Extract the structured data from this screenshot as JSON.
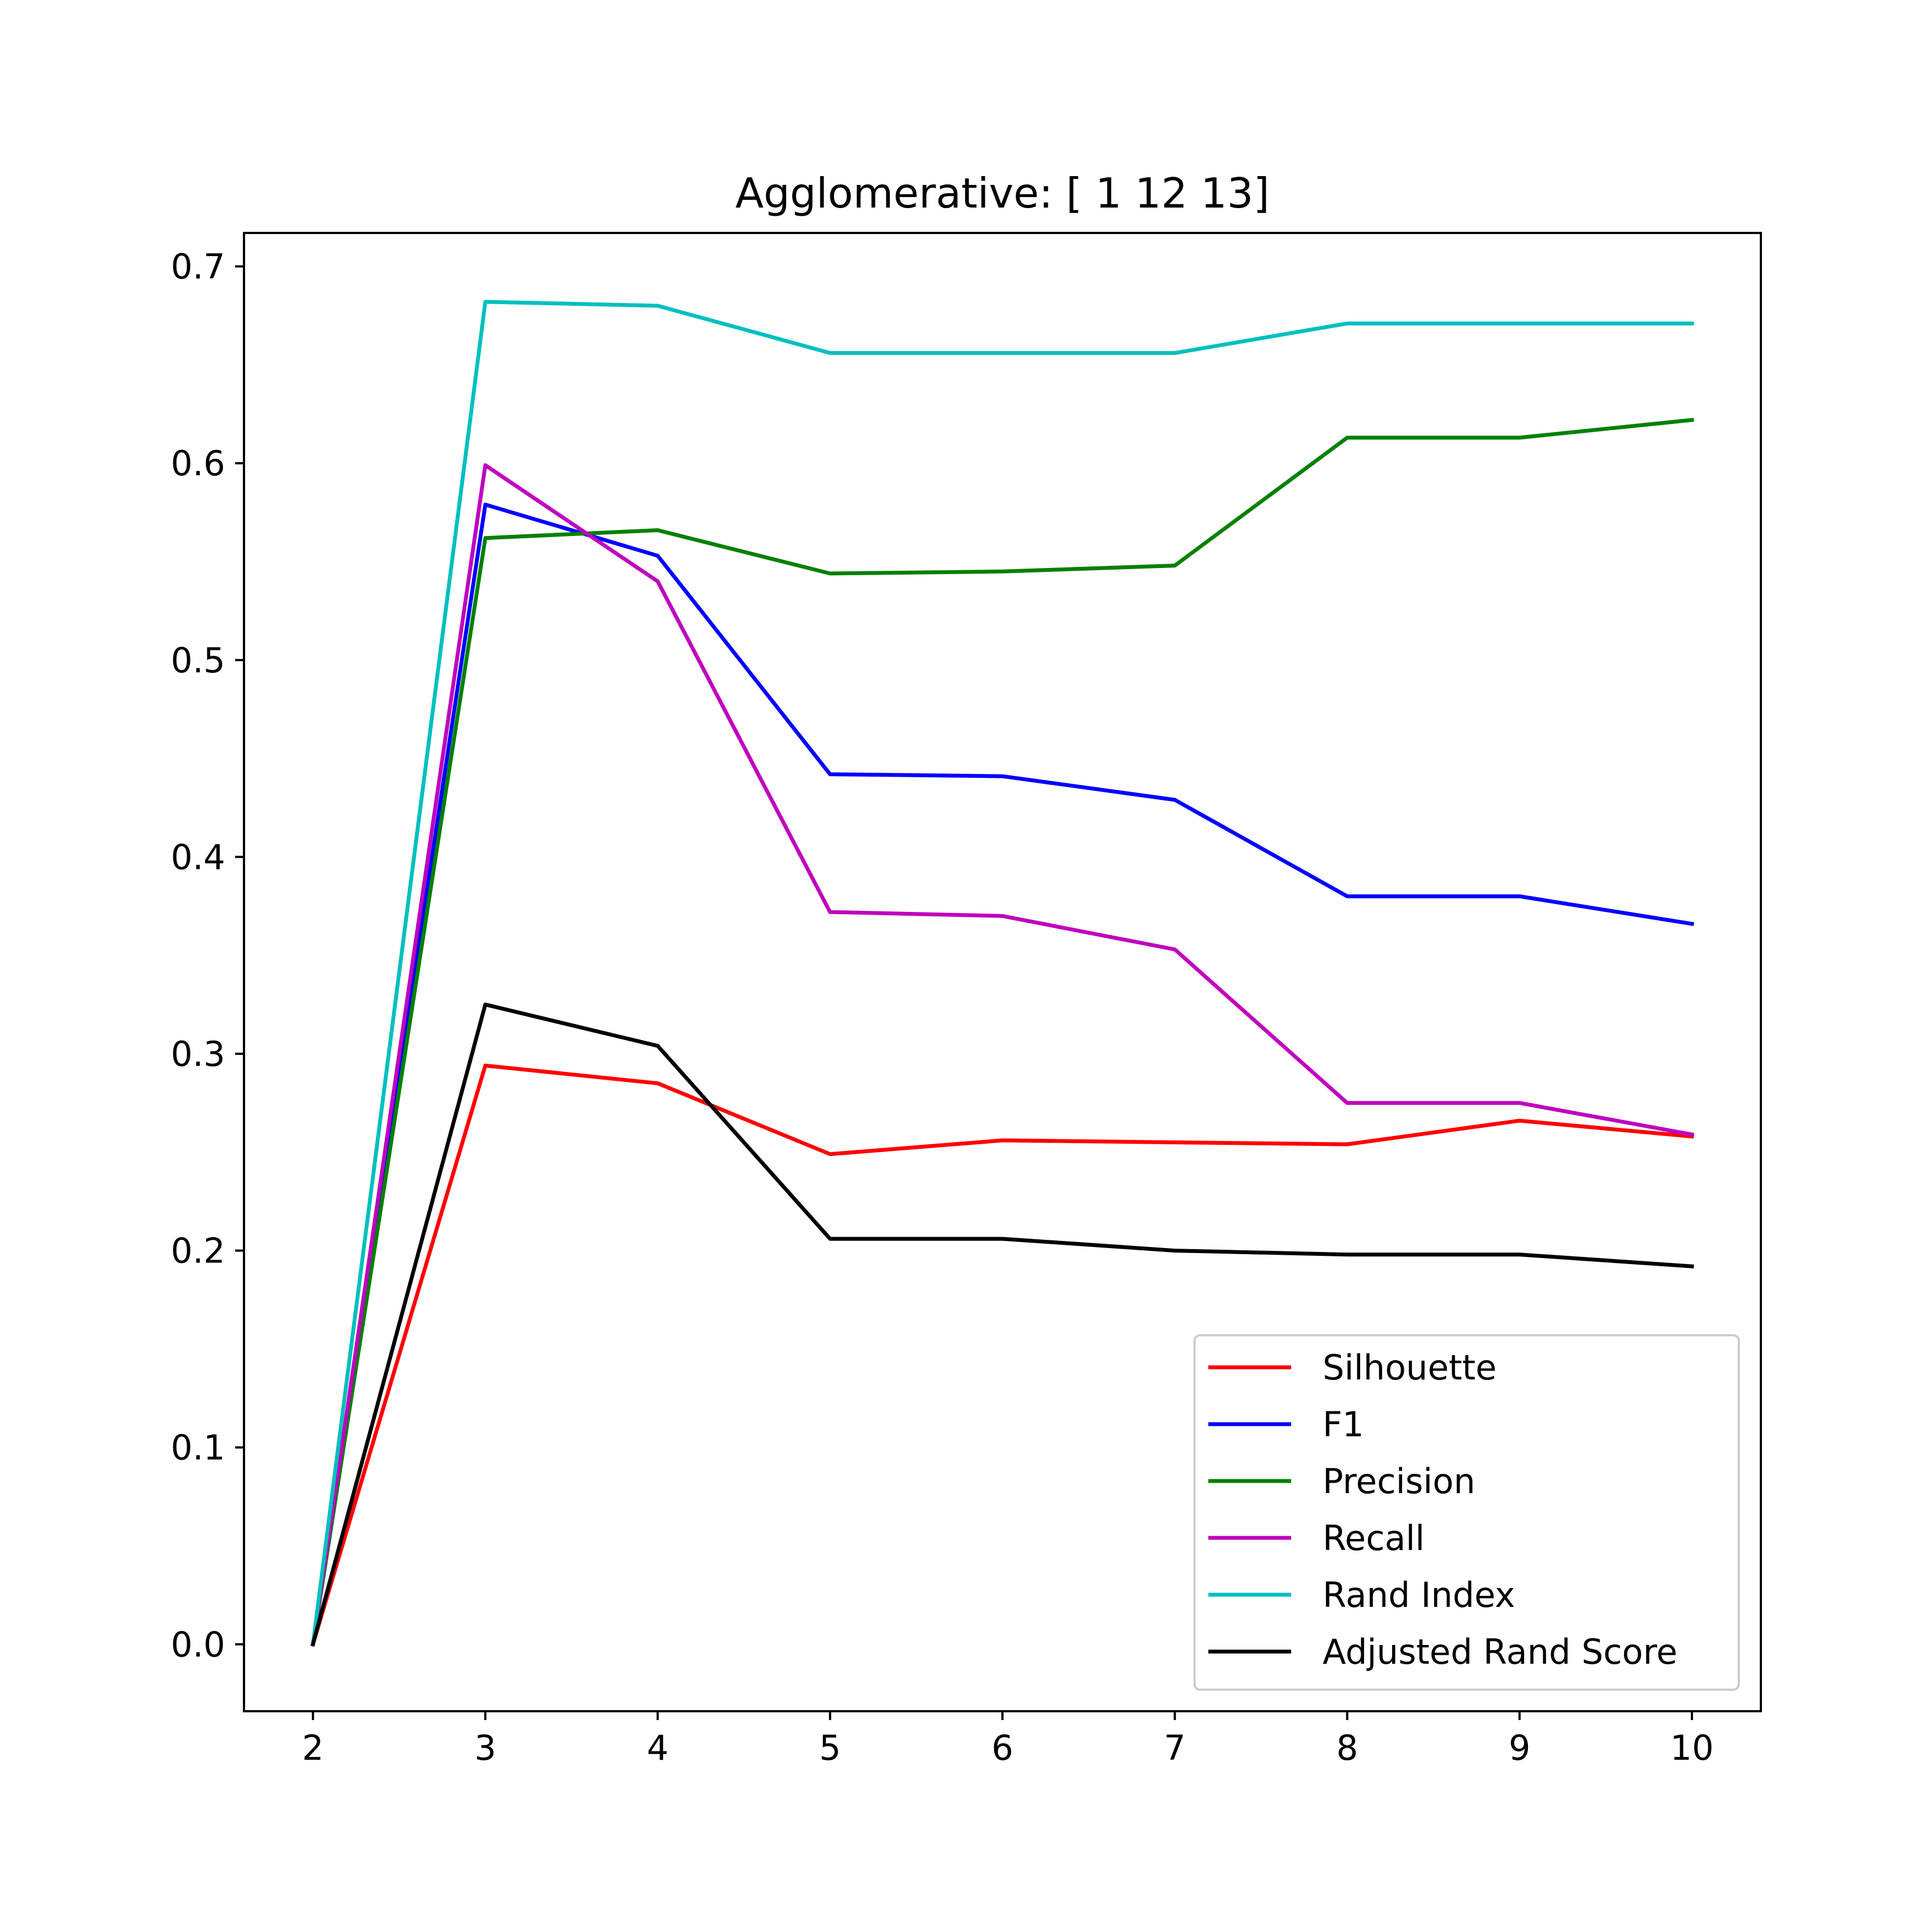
{
  "chart_data": {
    "type": "line",
    "title": "Agglomerative: [ 1 12 13]",
    "xlabel": "",
    "ylabel": "",
    "x": [
      2,
      3,
      4,
      5,
      6,
      7,
      8,
      9,
      10
    ],
    "xlim": [
      1.6,
      10.4
    ],
    "ylim": [
      -0.034,
      0.717
    ],
    "x_ticks": [
      "2",
      "3",
      "4",
      "5",
      "6",
      "7",
      "8",
      "9",
      "10"
    ],
    "y_ticks": [
      "0.0",
      "0.1",
      "0.2",
      "0.3",
      "0.4",
      "0.5",
      "0.6",
      "0.7"
    ],
    "grid": false,
    "legend_position": "lower-right",
    "series": [
      {
        "name": "Silhouette",
        "color": "#ff0000",
        "values": [
          0.0,
          0.294,
          0.285,
          0.249,
          0.256,
          0.255,
          0.254,
          0.266,
          0.258
        ]
      },
      {
        "name": "F1",
        "color": "#0000ff",
        "values": [
          0.0,
          0.579,
          0.553,
          0.442,
          0.441,
          0.429,
          0.38,
          0.38,
          0.366
        ]
      },
      {
        "name": "Precision",
        "color": "#008000",
        "values": [
          0.0,
          0.562,
          0.566,
          0.544,
          0.545,
          0.548,
          0.613,
          0.613,
          0.622
        ]
      },
      {
        "name": "Recall",
        "color": "#bf00bf",
        "values": [
          0.0,
          0.599,
          0.54,
          0.372,
          0.37,
          0.353,
          0.275,
          0.275,
          0.259
        ]
      },
      {
        "name": "Rand Index",
        "color": "#00bfbf",
        "values": [
          0.0,
          0.682,
          0.68,
          0.656,
          0.656,
          0.656,
          0.671,
          0.671,
          0.671
        ]
      },
      {
        "name": "Adjusted Rand Score",
        "color": "#000000",
        "values": [
          0.0,
          0.325,
          0.304,
          0.206,
          0.206,
          0.2,
          0.198,
          0.198,
          0.192
        ]
      }
    ]
  }
}
